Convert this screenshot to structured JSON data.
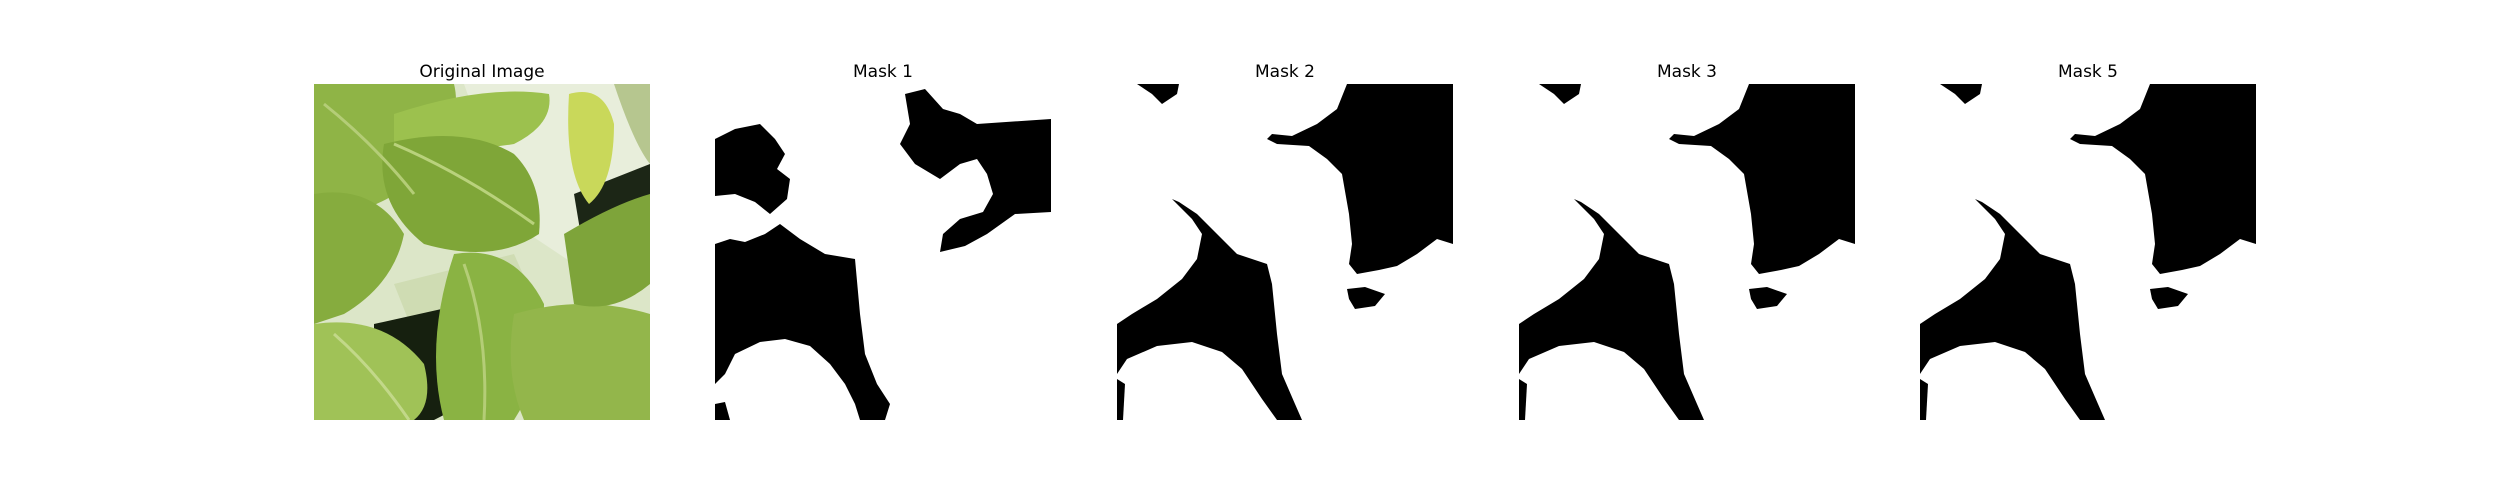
{
  "panels": [
    {
      "title": "Original Image"
    },
    {
      "title": "Mask 1"
    },
    {
      "title": "Mask 2"
    },
    {
      "title": "Mask 3"
    },
    {
      "title": "Mask 5"
    }
  ],
  "colors": {
    "mask_foreground": "#ffffff",
    "mask_background": "#000000",
    "leaf_light": "#9cbd4a",
    "leaf_mid": "#7aa035",
    "leaf_dark": "#4f7420",
    "backdrop_light": "#dfe8cf",
    "shadow": "#1a2412"
  }
}
